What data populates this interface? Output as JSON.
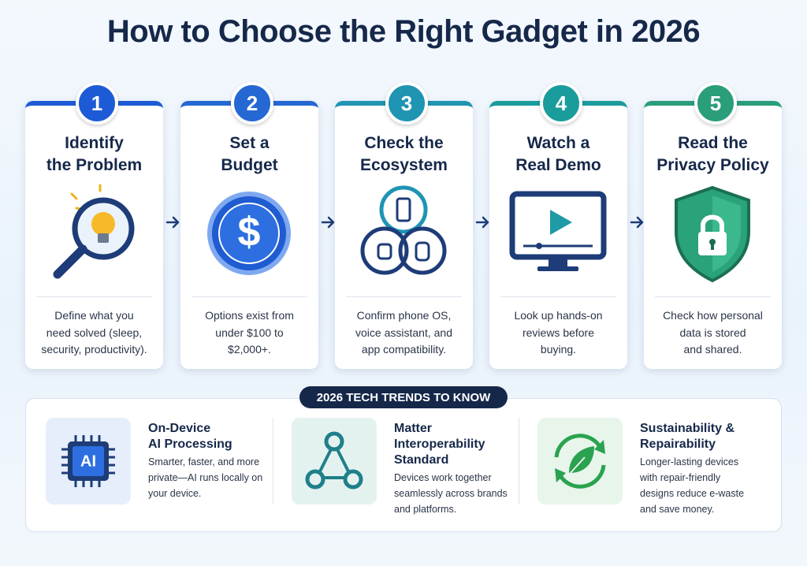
{
  "title": "How to Choose the Right Gadget in 2026",
  "steps": [
    {
      "number": "1",
      "title": [
        "Identify",
        "the Problem"
      ],
      "description": [
        "Define what you",
        "need solved (sleep,",
        "security, productivity)."
      ]
    },
    {
      "number": "2",
      "title": [
        "Set a",
        "Budget"
      ],
      "icon_label": "$",
      "description": [
        "Options exist from",
        "under $100 to",
        "$2,000+."
      ]
    },
    {
      "number": "3",
      "title": [
        "Check the",
        "Ecosystem"
      ],
      "description": [
        "Confirm phone OS,",
        "voice assistant, and",
        "app compatibility."
      ]
    },
    {
      "number": "4",
      "title": [
        "Watch a",
        "Real Demo"
      ],
      "description": [
        "Look up hands-on",
        "reviews before",
        "buying."
      ]
    },
    {
      "number": "5",
      "title": [
        "Read the",
        "Privacy Policy"
      ],
      "description": [
        "Check how personal",
        "data is stored",
        "and shared."
      ]
    }
  ],
  "trends_label": "2026 TECH TRENDS TO KNOW",
  "trends": [
    {
      "icon_label": "AI",
      "title": [
        "On-Device",
        "AI Processing"
      ],
      "description": [
        "Smarter, faster, and more",
        "private—AI runs locally on",
        "your device."
      ]
    },
    {
      "title": [
        "Matter",
        "Interoperability",
        "Standard"
      ],
      "description": [
        "Devices work together",
        "seamlessly across brands",
        "and platforms."
      ]
    },
    {
      "title": [
        "Sustainability &",
        "Repairability"
      ],
      "description": [
        "Longer-lasting devices",
        "with repair-friendly",
        "designs reduce e-waste",
        "and save money."
      ]
    }
  ]
}
